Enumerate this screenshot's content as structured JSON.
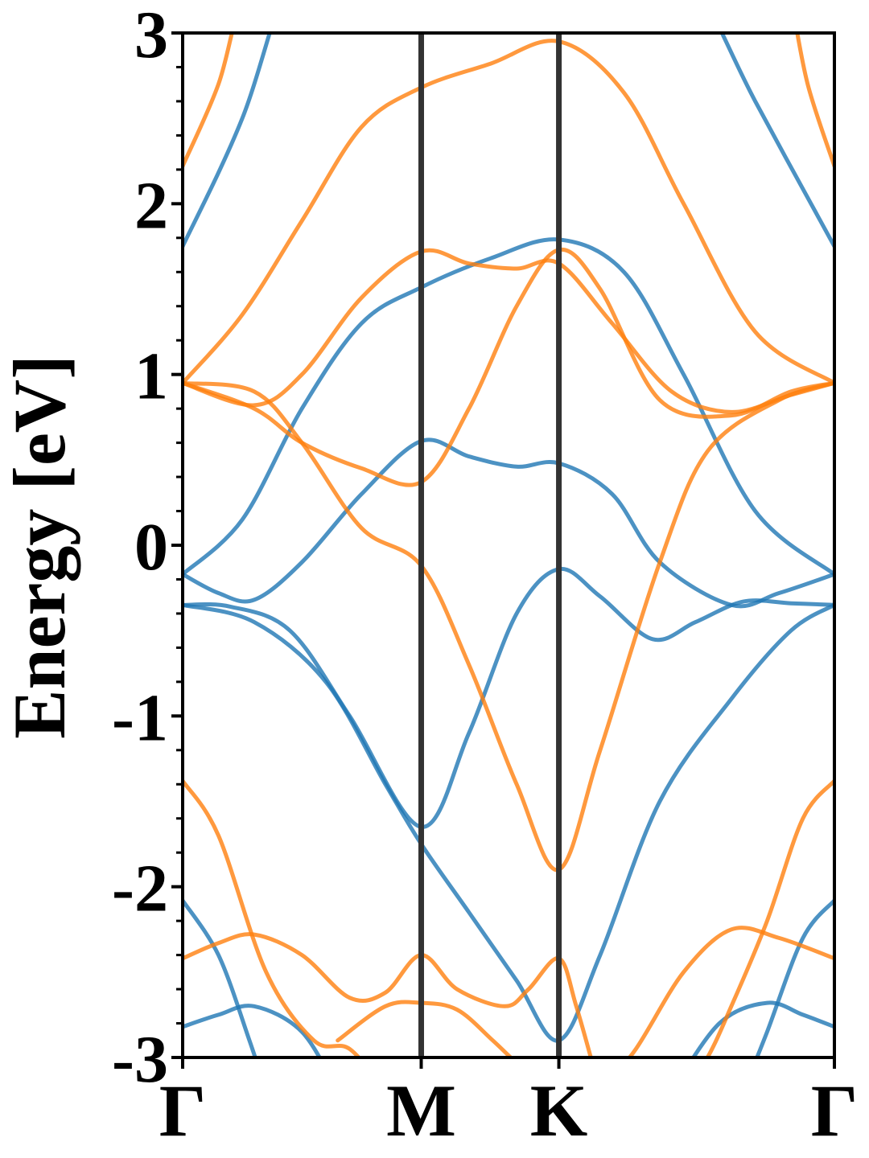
{
  "chart_data": {
    "type": "line",
    "ylabel": "Energy [eV]",
    "xlabel": "",
    "ylim": [
      -3,
      3
    ],
    "yticks": [
      {
        "value": -3,
        "label": "-3"
      },
      {
        "value": -2,
        "label": "-2"
      },
      {
        "value": -1,
        "label": "-1"
      },
      {
        "value": 0,
        "label": "0"
      },
      {
        "value": 1,
        "label": "1"
      },
      {
        "value": 2,
        "label": "2"
      },
      {
        "value": 3,
        "label": "3"
      }
    ],
    "minor_ytick_step": 0.2,
    "xlim": [
      0,
      2.732
    ],
    "kpoints": [
      {
        "label": "Γ",
        "x": 0
      },
      {
        "label": "M",
        "x": 1.0
      },
      {
        "label": "K",
        "x": 1.577
      },
      {
        "label": "Γ",
        "x": 2.732
      }
    ],
    "grid": false,
    "colors": {
      "blue": "#1f77b4",
      "orange": "#ff7f0e",
      "kline": "#333333"
    },
    "series": [
      {
        "color": "#1f77b4",
        "x": [
          0,
          0.25,
          0.5,
          0.75,
          1.0,
          1.29,
          1.577,
          1.85,
          2.1,
          2.4,
          2.732
        ],
        "y": [
          1.75,
          2.5,
          3.5,
          3.5,
          3.5,
          3.5,
          3.5,
          3.5,
          3.4,
          2.6,
          1.75
        ]
      },
      {
        "color": "#1f77b4",
        "x": [
          0,
          0.25,
          0.5,
          0.75,
          1.0,
          1.29,
          1.577,
          1.85,
          2.1,
          2.4,
          2.732
        ],
        "y": [
          -0.17,
          0.15,
          0.8,
          1.3,
          1.51,
          1.68,
          1.79,
          1.6,
          1.0,
          0.2,
          -0.17
        ]
      },
      {
        "color": "#1f77b4",
        "x": [
          0,
          0.15,
          0.3,
          0.5,
          0.75,
          1.0,
          1.2,
          1.4,
          1.577,
          1.8,
          2.0,
          2.3,
          2.5,
          2.732
        ],
        "y": [
          -0.17,
          -0.28,
          -0.32,
          -0.1,
          0.3,
          0.61,
          0.52,
          0.46,
          0.48,
          0.3,
          -0.1,
          -0.35,
          -0.28,
          -0.17
        ]
      },
      {
        "color": "#1f77b4",
        "x": [
          0,
          0.2,
          0.45,
          0.7,
          1.0,
          1.2,
          1.4,
          1.577,
          1.75,
          1.97,
          2.15,
          2.35,
          2.55,
          2.732
        ],
        "y": [
          -0.35,
          -0.36,
          -0.5,
          -1.0,
          -1.65,
          -1.1,
          -0.4,
          -0.14,
          -0.3,
          -0.55,
          -0.45,
          -0.33,
          -0.34,
          -0.35
        ]
      },
      {
        "color": "#1f77b4",
        "x": [
          0,
          0.3,
          0.6,
          0.85,
          1.0,
          1.2,
          1.4,
          1.577,
          1.75,
          2.0,
          2.3,
          2.55,
          2.732
        ],
        "y": [
          -0.35,
          -0.45,
          -0.8,
          -1.4,
          -1.75,
          -2.15,
          -2.55,
          -2.9,
          -2.4,
          -1.5,
          -0.9,
          -0.5,
          -0.35
        ]
      },
      {
        "color": "#1f77b4",
        "x": [
          0,
          0.15,
          0.28,
          0.35
        ],
        "y": [
          -2.08,
          -2.4,
          -2.9,
          -3.2
        ]
      },
      {
        "color": "#1f77b4",
        "x": [
          0,
          0.15,
          0.3,
          0.5,
          0.65
        ],
        "y": [
          -2.82,
          -2.75,
          -2.7,
          -2.85,
          -3.2
        ]
      },
      {
        "color": "#1f77b4",
        "x": [
          2.732,
          2.6,
          2.45,
          2.35
        ],
        "y": [
          -2.08,
          -2.3,
          -2.85,
          -3.2
        ]
      },
      {
        "color": "#1f77b4",
        "x": [
          2.732,
          2.6,
          2.45,
          2.25,
          2.05
        ],
        "y": [
          -2.82,
          -2.75,
          -2.68,
          -2.8,
          -3.2
        ]
      },
      {
        "color": "#ff7f0e",
        "x": [
          0,
          0.15,
          0.25,
          0.4
        ],
        "y": [
          2.22,
          2.7,
          3.2,
          3.5
        ]
      },
      {
        "color": "#ff7f0e",
        "x": [
          0,
          0.25,
          0.5,
          0.75,
          1.0,
          1.29,
          1.577,
          1.85,
          2.1,
          2.4,
          2.732
        ],
        "y": [
          0.95,
          1.35,
          1.9,
          2.45,
          2.68,
          2.82,
          2.95,
          2.65,
          2.0,
          1.25,
          0.95
        ]
      },
      {
        "color": "#ff7f0e",
        "x": [
          0,
          0.3,
          0.5,
          0.75,
          1.0,
          1.2,
          1.4,
          1.577,
          1.8,
          2.05,
          2.3,
          2.55,
          2.732
        ],
        "y": [
          0.95,
          0.82,
          1.0,
          1.45,
          1.72,
          1.65,
          1.62,
          1.65,
          1.3,
          0.9,
          0.78,
          0.88,
          0.95
        ]
      },
      {
        "color": "#ff7f0e",
        "x": [
          0,
          0.3,
          0.5,
          0.75,
          1.0,
          1.2,
          1.4,
          1.577,
          1.75,
          2.0,
          2.3,
          2.55,
          2.732
        ],
        "y": [
          0.95,
          0.8,
          0.6,
          0.45,
          0.37,
          0.8,
          1.4,
          1.73,
          1.5,
          0.85,
          0.76,
          0.9,
          0.95
        ]
      },
      {
        "color": "#ff7f0e",
        "x": [
          0,
          0.3,
          0.5,
          0.75,
          1.0,
          1.2,
          1.4,
          1.577,
          1.75,
          2.0,
          2.2,
          2.5,
          2.732
        ],
        "y": [
          0.95,
          0.9,
          0.6,
          0.1,
          -0.12,
          -0.7,
          -1.4,
          -1.9,
          -1.2,
          -0.1,
          0.55,
          0.85,
          0.95
        ]
      },
      {
        "color": "#ff7f0e",
        "x": [
          0,
          0.15,
          0.35,
          0.55,
          0.7,
          0.85
        ],
        "y": [
          -1.38,
          -1.7,
          -2.5,
          -2.9,
          -2.95,
          -3.2
        ]
      },
      {
        "color": "#ff7f0e",
        "x": [
          0,
          0.15,
          0.3,
          0.5,
          0.7,
          0.85,
          1.0,
          1.15,
          1.35,
          1.45,
          1.577,
          1.65,
          1.75
        ],
        "y": [
          -2.42,
          -2.33,
          -2.28,
          -2.4,
          -2.65,
          -2.62,
          -2.4,
          -2.6,
          -2.7,
          -2.6,
          -2.42,
          -2.7,
          -3.2
        ]
      },
      {
        "color": "#ff7f0e",
        "x": [
          0.65,
          0.85,
          1.0,
          1.15,
          1.3,
          1.45,
          1.55
        ],
        "y": [
          -2.9,
          -2.7,
          -2.68,
          -2.72,
          -2.9,
          -3.1,
          -3.2
        ]
      },
      {
        "color": "#ff7f0e",
        "x": [
          2.732,
          2.6,
          2.45,
          2.3,
          2.2,
          2.1
        ],
        "y": [
          -1.38,
          -1.6,
          -2.2,
          -2.7,
          -3.0,
          -3.2
        ]
      },
      {
        "color": "#ff7f0e",
        "x": [
          1.75,
          1.9,
          2.1,
          2.3,
          2.5,
          2.732
        ],
        "y": [
          -3.2,
          -2.95,
          -2.5,
          -2.25,
          -2.3,
          -2.42
        ]
      },
      {
        "color": "#ff7f0e",
        "x": [
          2.732,
          2.62,
          2.55,
          2.5
        ],
        "y": [
          2.22,
          2.7,
          3.2,
          3.5
        ]
      }
    ]
  }
}
